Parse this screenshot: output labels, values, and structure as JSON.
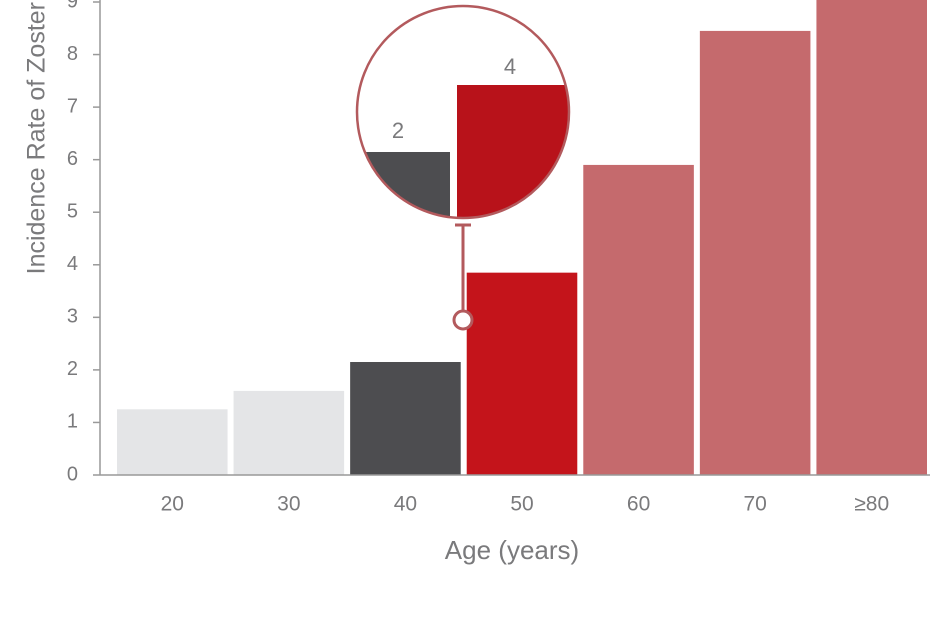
{
  "chart_data": {
    "type": "bar",
    "y_label": "Incidence Rate of Zoster",
    "x_label": "Age (years)",
    "categories": [
      "20",
      "30",
      "40",
      "50",
      "60",
      "70",
      "≥80"
    ],
    "values": [
      1.25,
      1.6,
      2.15,
      3.85,
      5.9,
      8.45,
      9.3
    ],
    "colors": [
      "#e4e5e7",
      "#e4e5e7",
      "#4d4d50",
      "#c4141b",
      "#c56a6d",
      "#c56a6d",
      "#c56a6d"
    ],
    "ylim": [
      0,
      9
    ],
    "yticks": [
      0,
      1,
      2,
      3,
      4,
      5,
      6,
      7,
      8,
      9
    ],
    "annotations": [
      "2",
      "4"
    ]
  }
}
